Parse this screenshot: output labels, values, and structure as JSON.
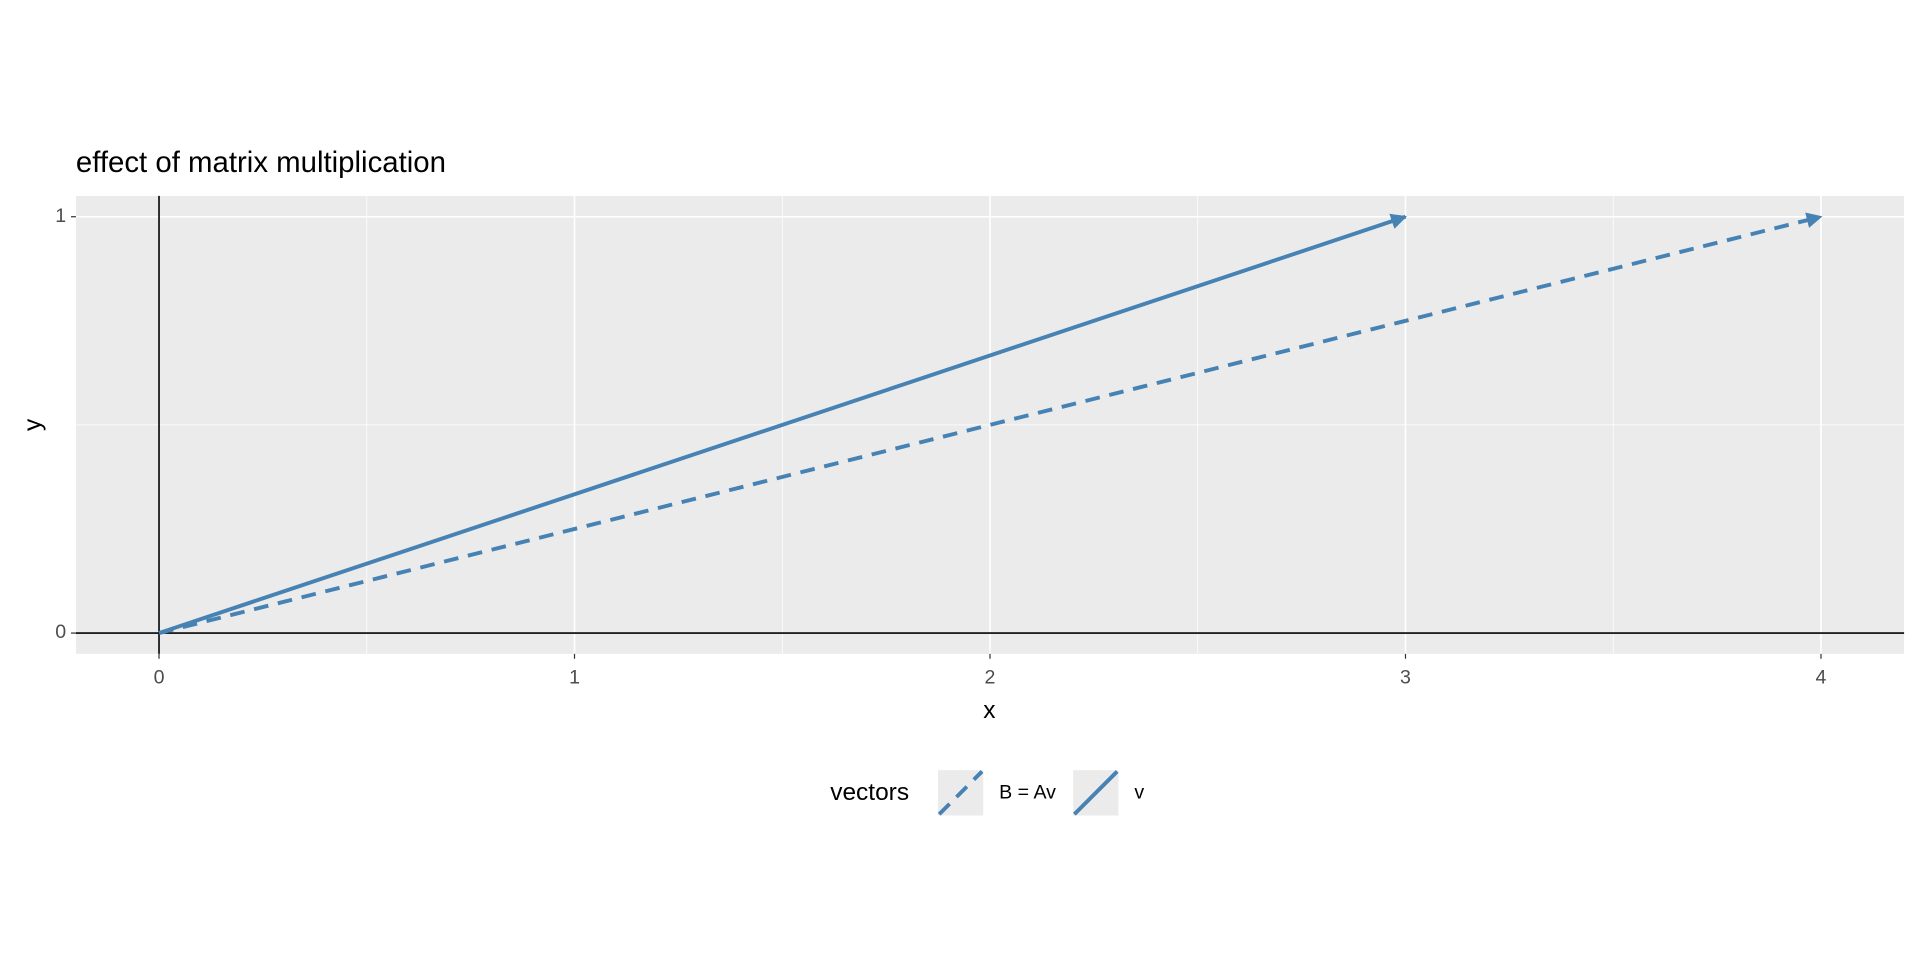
{
  "chart_data": {
    "type": "vector",
    "title": "effect of matrix multiplication",
    "x_label": "x",
    "y_label": "y",
    "xlim": [
      -0.2,
      4.2
    ],
    "ylim": [
      -0.05,
      1.05
    ],
    "xticks": [
      0,
      1,
      2,
      3,
      4
    ],
    "yticks": [
      0,
      1
    ],
    "grid": true,
    "reference_lines": {
      "x": 0,
      "y": 0
    },
    "legend_title": "vectors",
    "legend_position": "bottom",
    "series": [
      {
        "name": "B = Av",
        "color": "#4682b4",
        "linetype": "dashed",
        "x": [
          0,
          4
        ],
        "values": [
          0,
          1
        ]
      },
      {
        "name": "v",
        "color": "#4682b4",
        "linetype": "solid",
        "x": [
          0,
          3
        ],
        "values": [
          0,
          1
        ]
      }
    ]
  }
}
